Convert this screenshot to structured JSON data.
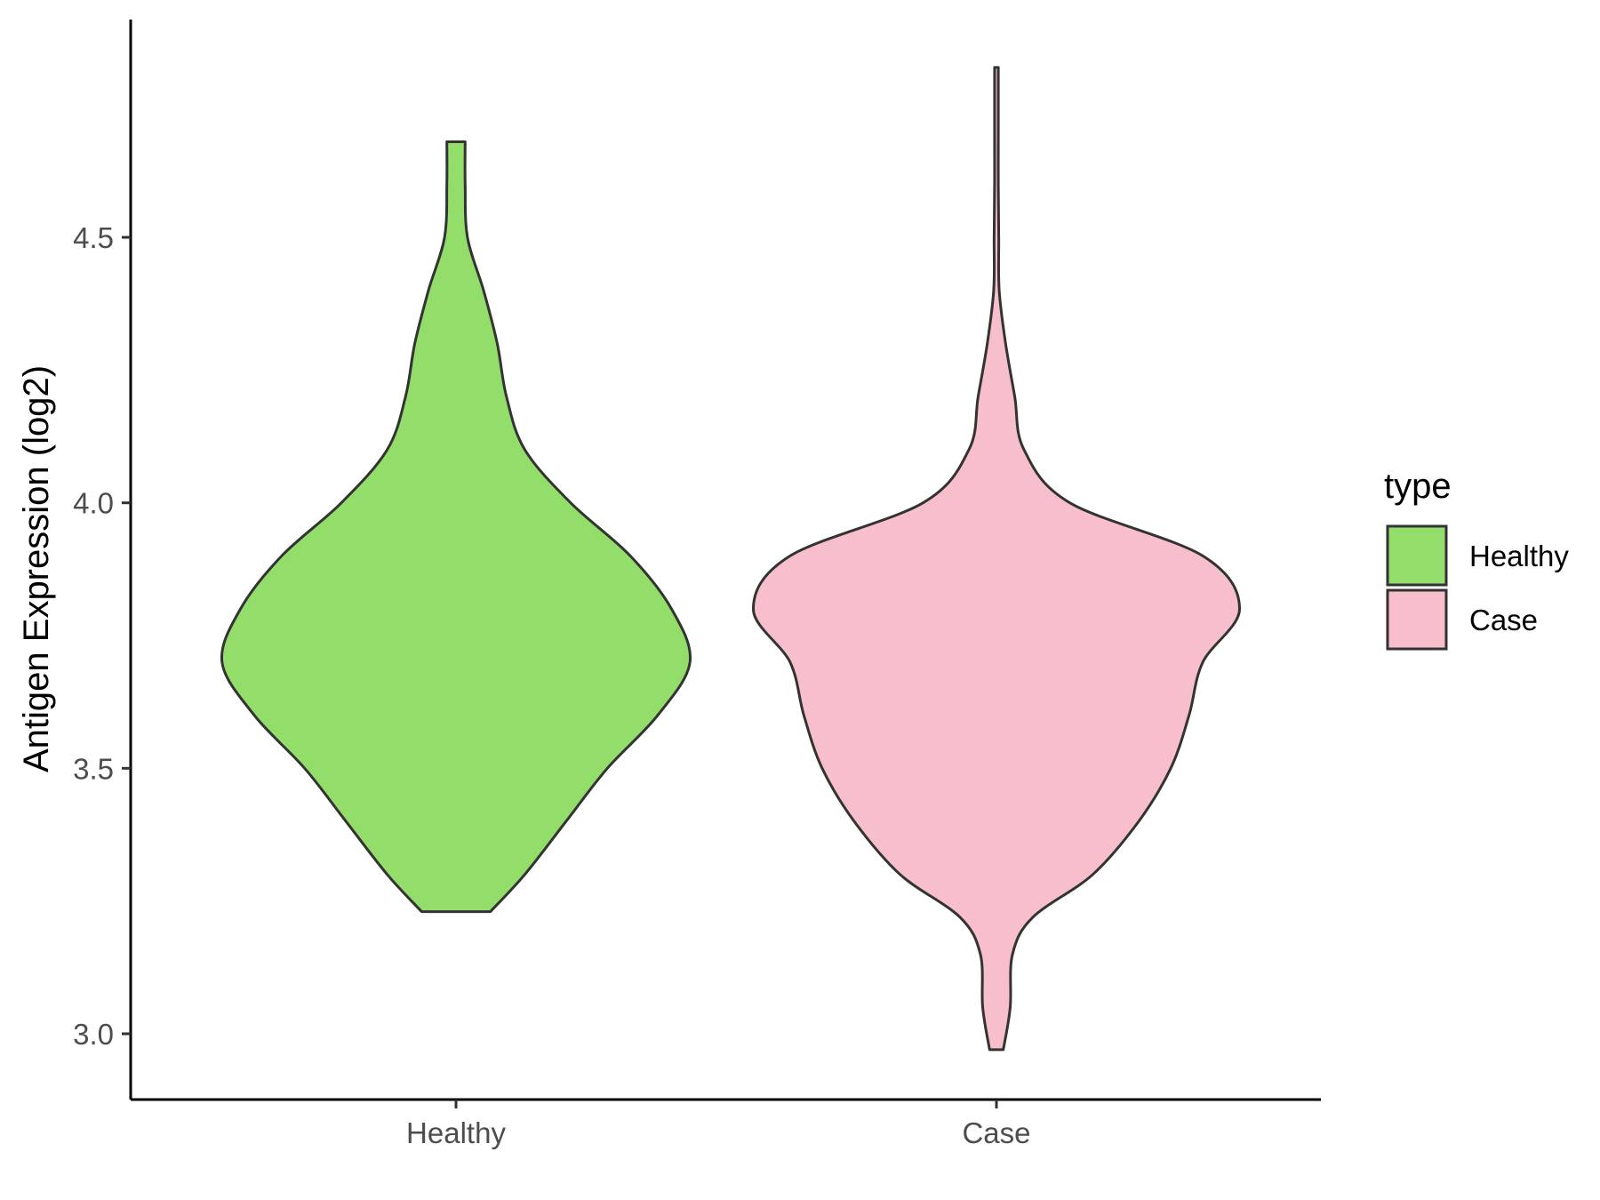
{
  "chart_data": {
    "type": "violin",
    "title": "",
    "xlabel": "",
    "ylabel": "Antigen Expression (log2)",
    "ylim": [
      2.88,
      4.95
    ],
    "yticks": [
      3.0,
      3.5,
      4.0,
      4.5
    ],
    "ytick_labels": [
      "3.0",
      "3.5",
      "4.0",
      "4.5"
    ],
    "categories": [
      "Healthy",
      "Case"
    ],
    "grid": false,
    "legend": {
      "title": "type",
      "position": "right",
      "entries": [
        {
          "label": "Healthy",
          "color": "#93dd6b"
        },
        {
          "label": "Case",
          "color": "#f7bfcb"
        }
      ]
    },
    "outline_color": "#333333",
    "series": [
      {
        "name": "Healthy",
        "color": "#93dd6b",
        "min": 3.23,
        "max": 4.68,
        "profile": [
          [
            3.23,
            0.075
          ],
          [
            3.3,
            0.15
          ],
          [
            3.4,
            0.24
          ],
          [
            3.5,
            0.33
          ],
          [
            3.6,
            0.44
          ],
          [
            3.7,
            0.51
          ],
          [
            3.8,
            0.47
          ],
          [
            3.9,
            0.38
          ],
          [
            4.0,
            0.25
          ],
          [
            4.1,
            0.15
          ],
          [
            4.2,
            0.11
          ],
          [
            4.3,
            0.09
          ],
          [
            4.4,
            0.06
          ],
          [
            4.5,
            0.025
          ],
          [
            4.6,
            0.02
          ],
          [
            4.68,
            0.02
          ]
        ]
      },
      {
        "name": "Case",
        "color": "#f7bfcb",
        "min": 2.97,
        "max": 4.82,
        "profile": [
          [
            2.97,
            0.015
          ],
          [
            3.05,
            0.03
          ],
          [
            3.15,
            0.035
          ],
          [
            3.22,
            0.08
          ],
          [
            3.3,
            0.21
          ],
          [
            3.4,
            0.31
          ],
          [
            3.5,
            0.38
          ],
          [
            3.6,
            0.42
          ],
          [
            3.7,
            0.45
          ],
          [
            3.8,
            0.53
          ],
          [
            3.9,
            0.45
          ],
          [
            4.0,
            0.16
          ],
          [
            4.1,
            0.06
          ],
          [
            4.2,
            0.04
          ],
          [
            4.3,
            0.02
          ],
          [
            4.4,
            0.006
          ],
          [
            4.5,
            0.005
          ],
          [
            4.6,
            0.004
          ],
          [
            4.7,
            0.004
          ],
          [
            4.82,
            0.004
          ]
        ]
      }
    ]
  }
}
